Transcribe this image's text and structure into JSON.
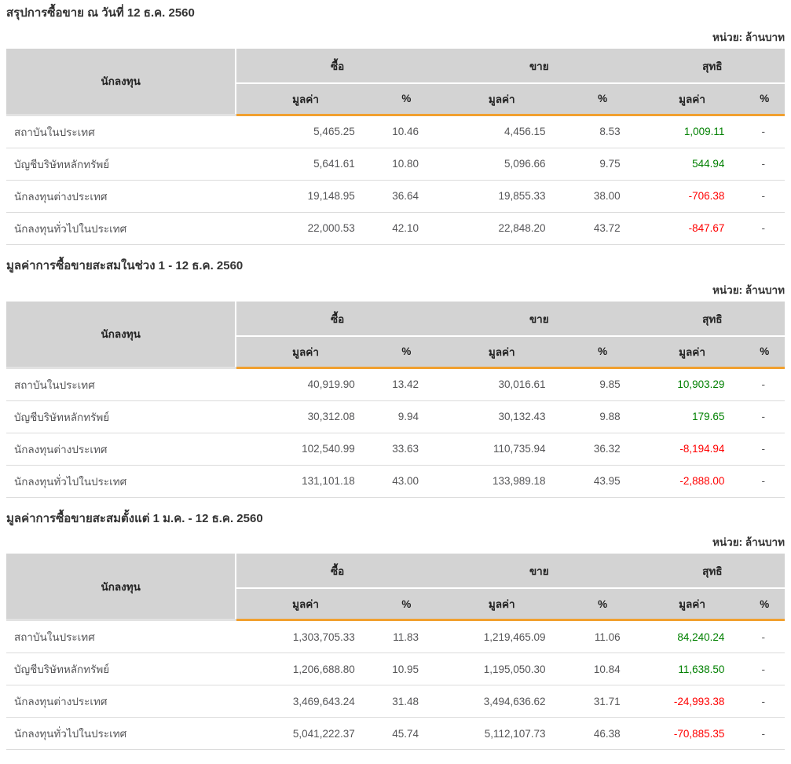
{
  "unit_label": "หน่วย: ล้านบาท",
  "columns": {
    "investor": "นักลงทุน",
    "buy": "ซื้อ",
    "sell": "ขาย",
    "net": "สุทธิ",
    "value": "มูลค่า",
    "percent": "%"
  },
  "colors": {
    "accent_orange": "#f1a02f",
    "header_bg": "#d3d3d3",
    "positive": "#008000",
    "negative": "#ff0000"
  },
  "sections": [
    {
      "title": "สรุปการซื้อขาย ณ วันที่ 12 ธ.ค. 2560",
      "rows": [
        {
          "investor": "สถาบันในประเทศ",
          "buy_value": "5,465.25",
          "buy_pct": "10.46",
          "sell_value": "4,456.15",
          "sell_pct": "8.53",
          "net_value": "1,009.11",
          "net_pct": "-",
          "net_class": "pos"
        },
        {
          "investor": "บัญชีบริษัทหลักทรัพย์",
          "buy_value": "5,641.61",
          "buy_pct": "10.80",
          "sell_value": "5,096.66",
          "sell_pct": "9.75",
          "net_value": "544.94",
          "net_pct": "-",
          "net_class": "pos"
        },
        {
          "investor": "นักลงทุนต่างประเทศ",
          "buy_value": "19,148.95",
          "buy_pct": "36.64",
          "sell_value": "19,855.33",
          "sell_pct": "38.00",
          "net_value": "-706.38",
          "net_pct": "-",
          "net_class": "neg"
        },
        {
          "investor": "นักลงทุนทั่วไปในประเทศ",
          "buy_value": "22,000.53",
          "buy_pct": "42.10",
          "sell_value": "22,848.20",
          "sell_pct": "43.72",
          "net_value": "-847.67",
          "net_pct": "-",
          "net_class": "neg"
        }
      ]
    },
    {
      "title": "มูลค่าการซื้อขายสะสมในช่วง 1 - 12 ธ.ค. 2560",
      "rows": [
        {
          "investor": "สถาบันในประเทศ",
          "buy_value": "40,919.90",
          "buy_pct": "13.42",
          "sell_value": "30,016.61",
          "sell_pct": "9.85",
          "net_value": "10,903.29",
          "net_pct": "-",
          "net_class": "pos"
        },
        {
          "investor": "บัญชีบริษัทหลักทรัพย์",
          "buy_value": "30,312.08",
          "buy_pct": "9.94",
          "sell_value": "30,132.43",
          "sell_pct": "9.88",
          "net_value": "179.65",
          "net_pct": "-",
          "net_class": "pos"
        },
        {
          "investor": "นักลงทุนต่างประเทศ",
          "buy_value": "102,540.99",
          "buy_pct": "33.63",
          "sell_value": "110,735.94",
          "sell_pct": "36.32",
          "net_value": "-8,194.94",
          "net_pct": "-",
          "net_class": "neg"
        },
        {
          "investor": "นักลงทุนทั่วไปในประเทศ",
          "buy_value": "131,101.18",
          "buy_pct": "43.00",
          "sell_value": "133,989.18",
          "sell_pct": "43.95",
          "net_value": "-2,888.00",
          "net_pct": "-",
          "net_class": "neg"
        }
      ]
    },
    {
      "title": "มูลค่าการซื้อขายสะสมตั้งแต่ 1 ม.ค. - 12 ธ.ค. 2560",
      "rows": [
        {
          "investor": "สถาบันในประเทศ",
          "buy_value": "1,303,705.33",
          "buy_pct": "11.83",
          "sell_value": "1,219,465.09",
          "sell_pct": "11.06",
          "net_value": "84,240.24",
          "net_pct": "-",
          "net_class": "pos"
        },
        {
          "investor": "บัญชีบริษัทหลักทรัพย์",
          "buy_value": "1,206,688.80",
          "buy_pct": "10.95",
          "sell_value": "1,195,050.30",
          "sell_pct": "10.84",
          "net_value": "11,638.50",
          "net_pct": "-",
          "net_class": "pos"
        },
        {
          "investor": "นักลงทุนต่างประเทศ",
          "buy_value": "3,469,643.24",
          "buy_pct": "31.48",
          "sell_value": "3,494,636.62",
          "sell_pct": "31.71",
          "net_value": "-24,993.38",
          "net_pct": "-",
          "net_class": "neg"
        },
        {
          "investor": "นักลงทุนทั่วไปในประเทศ",
          "buy_value": "5,041,222.37",
          "buy_pct": "45.74",
          "sell_value": "5,112,107.73",
          "sell_pct": "46.38",
          "net_value": "-70,885.35",
          "net_pct": "-",
          "net_class": "neg"
        }
      ]
    }
  ]
}
